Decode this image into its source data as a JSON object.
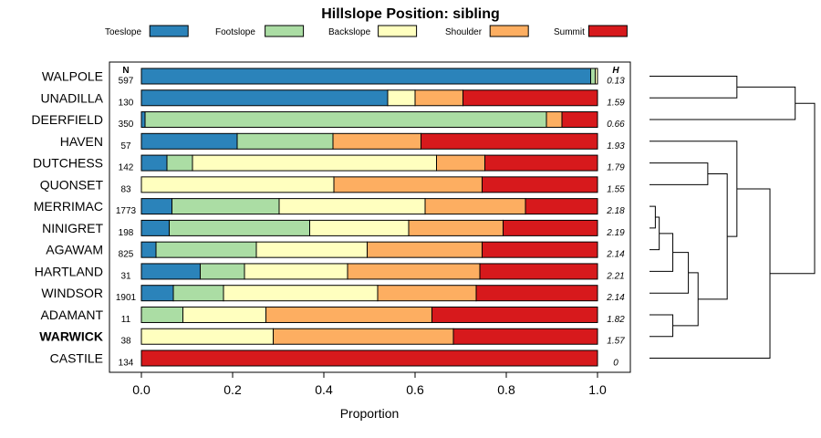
{
  "chart_data": {
    "type": "bar",
    "stacked": true,
    "orientation": "horizontal",
    "title": "Hillslope Position: sibling",
    "xlabel": "Proportion",
    "xlim": [
      0,
      1
    ],
    "xticks": [
      "0.0",
      "0.2",
      "0.4",
      "0.6",
      "0.8",
      "1.0"
    ],
    "n_header": "N",
    "h_header": "H",
    "highlight": "WARWICK",
    "legend": [
      {
        "name": "Toeslope",
        "color": "#2b83ba"
      },
      {
        "name": "Footslope",
        "color": "#abdda4"
      },
      {
        "name": "Backslope",
        "color": "#ffffbf"
      },
      {
        "name": "Shoulder",
        "color": "#fdae61"
      },
      {
        "name": "Summit",
        "color": "#d7191c"
      }
    ],
    "rows": [
      {
        "name": "WALPOLE",
        "n": "597",
        "h": "0.13",
        "values": [
          0.985,
          0.01,
          0.005,
          0,
          0
        ]
      },
      {
        "name": "UNADILLA",
        "n": "130",
        "h": "1.59",
        "values": [
          0.54,
          0,
          0.06,
          0.105,
          0.295
        ]
      },
      {
        "name": "DEERFIELD",
        "n": "350",
        "h": "0.66",
        "values": [
          0.008,
          0.88,
          0,
          0.034,
          0.078
        ]
      },
      {
        "name": "HAVEN",
        "n": "57",
        "h": "1.93",
        "values": [
          0.21,
          0.21,
          0,
          0.193,
          0.387
        ]
      },
      {
        "name": "DUTCHESS",
        "n": "142",
        "h": "1.79",
        "values": [
          0.056,
          0.056,
          0.535,
          0.106,
          0.247
        ]
      },
      {
        "name": "QUONSET",
        "n": "83",
        "h": "1.55",
        "values": [
          0,
          0,
          0.422,
          0.325,
          0.253
        ]
      },
      {
        "name": "MERRIMAC",
        "n": "1773",
        "h": "2.18",
        "values": [
          0.067,
          0.235,
          0.32,
          0.22,
          0.158
        ]
      },
      {
        "name": "NINIGRET",
        "n": "198",
        "h": "2.19",
        "values": [
          0.061,
          0.308,
          0.217,
          0.207,
          0.207
        ]
      },
      {
        "name": "AGAWAM",
        "n": "825",
        "h": "2.14",
        "values": [
          0.032,
          0.22,
          0.243,
          0.252,
          0.253
        ]
      },
      {
        "name": "HARTLAND",
        "n": "31",
        "h": "2.21",
        "values": [
          0.129,
          0.097,
          0.226,
          0.29,
          0.258
        ]
      },
      {
        "name": "WINDSOR",
        "n": "1901",
        "h": "2.14",
        "values": [
          0.07,
          0.11,
          0.338,
          0.216,
          0.266
        ]
      },
      {
        "name": "ADAMANT",
        "n": "11",
        "h": "1.82",
        "values": [
          0,
          0.091,
          0.182,
          0.364,
          0.363
        ]
      },
      {
        "name": "WARWICK",
        "n": "38",
        "h": "1.57",
        "values": [
          0,
          0,
          0.289,
          0.395,
          0.316
        ]
      },
      {
        "name": "CASTILE",
        "n": "134",
        "h": "0",
        "values": [
          0,
          0,
          0,
          0,
          1.0
        ]
      }
    ],
    "dendrogram": {
      "description": "hierarchical clustering of series by profile",
      "leaves": [
        "WALPOLE",
        "UNADILLA",
        "DEERFIELD",
        "HAVEN",
        "DUTCHESS",
        "QUONSET",
        "MERRIMAC",
        "NINIGRET",
        "AGAWAM",
        "HARTLAND",
        "WINDSOR",
        "ADAMANT",
        "WARWICK",
        "CASTILE"
      ],
      "merges": [
        {
          "a": "WALPOLE",
          "b": "UNADILLA",
          "height": 0.45
        },
        {
          "a": "M1",
          "b": "DEERFIELD",
          "height": 0.75
        },
        {
          "a": "MERRIMAC",
          "b": "NINIGRET",
          "height": 0.03
        },
        {
          "a": "M3",
          "b": "AGAWAM",
          "height": 0.05
        },
        {
          "a": "M4",
          "b": "HARTLAND",
          "height": 0.12
        },
        {
          "a": "M5",
          "b": "WINDSOR",
          "height": 0.2
        },
        {
          "a": "ADAMANT",
          "b": "WARWICK",
          "height": 0.12
        },
        {
          "a": "M6",
          "b": "M7",
          "height": 0.25
        },
        {
          "a": "DUTCHESS",
          "b": "QUONSET",
          "height": 0.3
        },
        {
          "a": "M8",
          "b": "M9",
          "height": 0.4
        },
        {
          "a": "HAVEN",
          "b": "M10",
          "height": 0.45
        },
        {
          "a": "M11",
          "b": "CASTILE",
          "height": 0.62
        },
        {
          "a": "M2",
          "b": "M12",
          "height": 0.85
        }
      ]
    }
  }
}
